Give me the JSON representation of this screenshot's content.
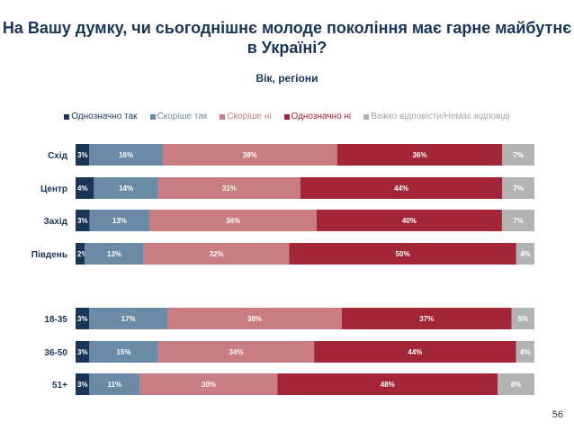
{
  "title": "На Вашу думку, чи сьогоднішнє молоде покоління має гарне майбутнє в Україні?",
  "subtitle": "Вік, регіони",
  "page_number": "56",
  "colors": [
    "#1a3557",
    "#6a8aa6",
    "#c97c82",
    "#a32638",
    "#b3b3b3"
  ],
  "chart_data": {
    "type": "bar",
    "orientation": "horizontal-stacked-100",
    "series_names": [
      "Однозначно так",
      "Скоріше так",
      "Скоріше ні",
      "Однозначно ні",
      "Важко відповісти/Немає відповіді"
    ],
    "categories": [
      "Схід",
      "Центр",
      "Захід",
      "Південь",
      "18-35",
      "36-50",
      "51+"
    ],
    "groups": [
      [
        0,
        1,
        2,
        3
      ],
      [
        4,
        5,
        6
      ]
    ],
    "values": [
      [
        3,
        16,
        38,
        36,
        7
      ],
      [
        4,
        14,
        31,
        44,
        7
      ],
      [
        3,
        13,
        36,
        40,
        7
      ],
      [
        2,
        13,
        32,
        50,
        4
      ],
      [
        3,
        17,
        38,
        37,
        5
      ],
      [
        3,
        15,
        34,
        44,
        4
      ],
      [
        3,
        11,
        30,
        48,
        8
      ]
    ],
    "labels": [
      [
        "3%",
        "16%",
        "38%",
        "36%",
        "7%"
      ],
      [
        "4%",
        "14%",
        "31%",
        "44%",
        "7%"
      ],
      [
        "3%",
        "13%",
        "36%",
        "40%",
        "7%"
      ],
      [
        "2%",
        "13%",
        "32%",
        "50%",
        "4%"
      ],
      [
        "3%",
        "17%",
        "38%",
        "37%",
        "5%"
      ],
      [
        "3%",
        "15%",
        "34%",
        "44%",
        "4%"
      ],
      [
        "3%",
        "11%",
        "30%",
        "48%",
        "8%"
      ]
    ],
    "xlim": [
      0,
      100
    ]
  }
}
